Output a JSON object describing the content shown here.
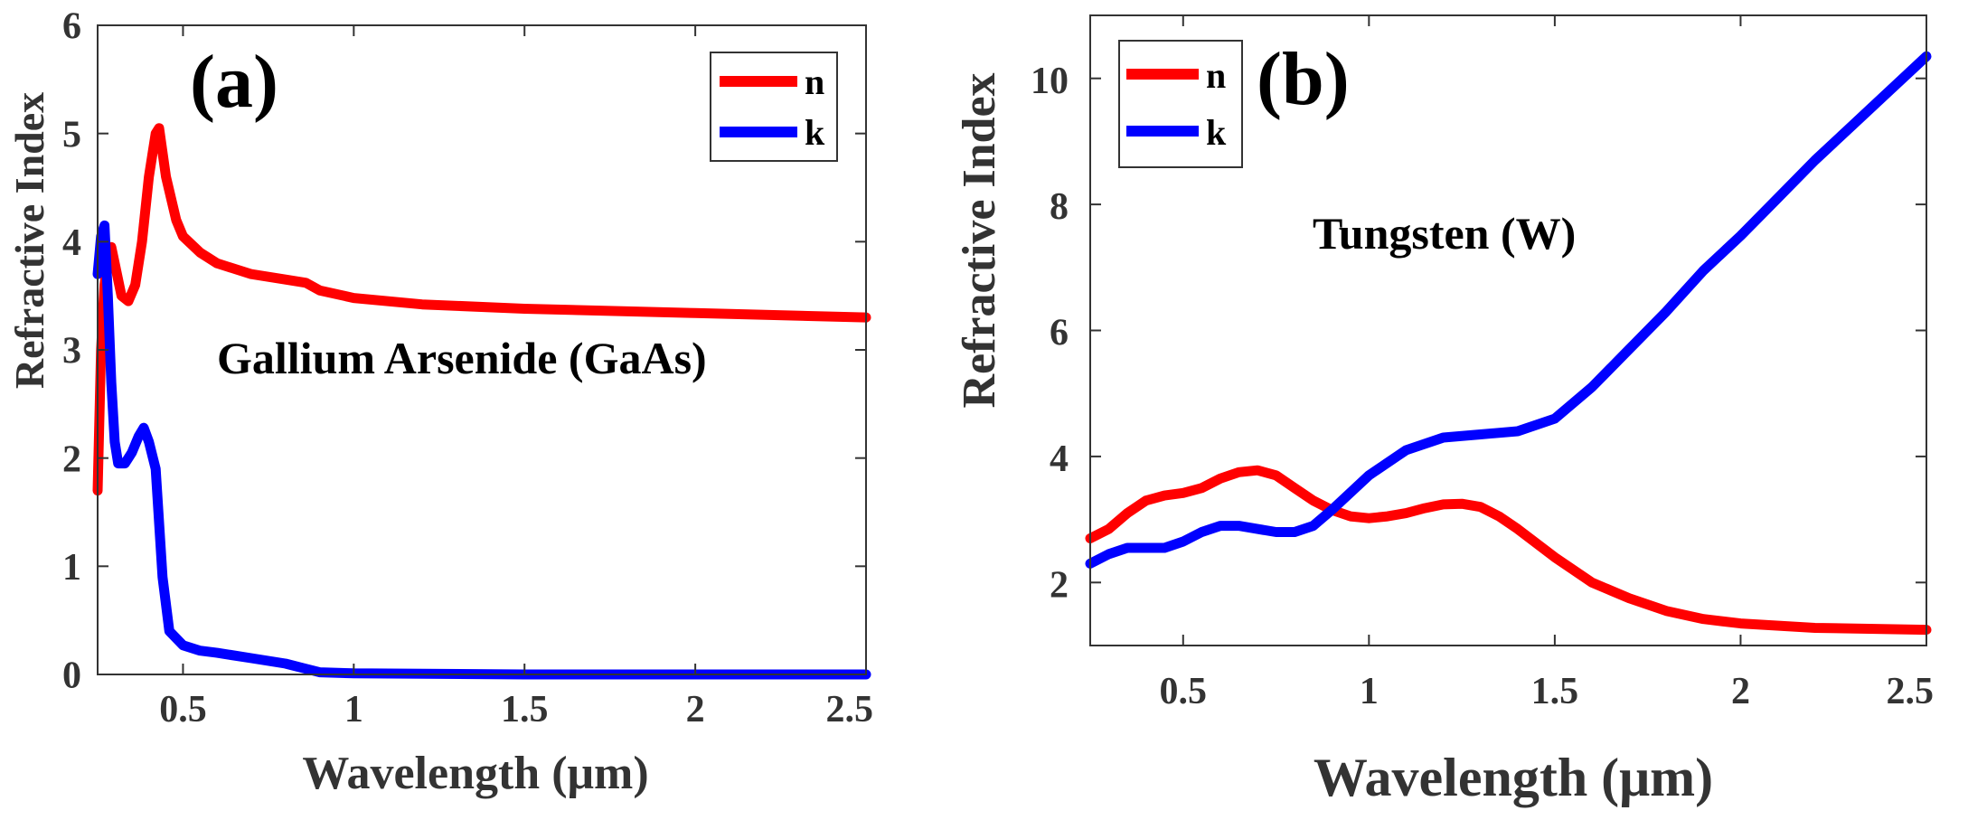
{
  "chart_data": [
    {
      "type": "line",
      "panel_label": "(a)",
      "annotation": "Gallium Arsenide (GaAs)",
      "xlabel": "Wavelength (μm)",
      "ylabel": "Refractive Index",
      "xlim": [
        0.25,
        2.5
      ],
      "ylim": [
        0,
        6
      ],
      "xticks": [
        0.5,
        1,
        1.5,
        2,
        2.5
      ],
      "xtick_labels": [
        "0.5",
        "1",
        "1.5",
        "2",
        "2.5"
      ],
      "yticks": [
        0,
        1,
        2,
        3,
        4,
        5,
        6
      ],
      "ytick_labels": [
        "0",
        "1",
        "2",
        "3",
        "4",
        "5",
        "6"
      ],
      "grid": false,
      "legend": "top-right",
      "series": [
        {
          "name": "n",
          "color": "#ff0000",
          "x": [
            0.25,
            0.26,
            0.27,
            0.28,
            0.29,
            0.3,
            0.32,
            0.34,
            0.36,
            0.38,
            0.4,
            0.42,
            0.43,
            0.45,
            0.48,
            0.5,
            0.55,
            0.6,
            0.7,
            0.8,
            0.86,
            0.9,
            1.0,
            1.2,
            1.5,
            2.0,
            2.5
          ],
          "y": [
            1.7,
            3.0,
            3.6,
            3.85,
            3.95,
            3.8,
            3.5,
            3.45,
            3.6,
            4.0,
            4.6,
            5.0,
            5.05,
            4.6,
            4.2,
            4.05,
            3.9,
            3.8,
            3.7,
            3.65,
            3.62,
            3.55,
            3.48,
            3.42,
            3.38,
            3.34,
            3.3
          ]
        },
        {
          "name": "k",
          "color": "#0000ff",
          "x": [
            0.25,
            0.26,
            0.27,
            0.28,
            0.29,
            0.3,
            0.31,
            0.33,
            0.35,
            0.37,
            0.385,
            0.4,
            0.42,
            0.44,
            0.46,
            0.5,
            0.55,
            0.6,
            0.7,
            0.8,
            0.85,
            0.9,
            1.0,
            1.5,
            2.0,
            2.5
          ],
          "y": [
            3.7,
            4.05,
            4.15,
            3.5,
            2.7,
            2.15,
            1.95,
            1.95,
            2.05,
            2.2,
            2.28,
            2.15,
            1.9,
            0.9,
            0.4,
            0.27,
            0.22,
            0.2,
            0.15,
            0.1,
            0.06,
            0.02,
            0.01,
            0.0,
            0.0,
            0.0
          ]
        }
      ]
    },
    {
      "type": "line",
      "panel_label": "(b)",
      "annotation": "Tungsten (W)",
      "xlabel": "Wavelength (μm)",
      "ylabel": "Refractive Index",
      "xlim": [
        0.25,
        2.5
      ],
      "ylim": [
        1,
        11
      ],
      "xticks": [
        0.5,
        1,
        1.5,
        2,
        2.5
      ],
      "xtick_labels": [
        "0.5",
        "1",
        "1.5",
        "2",
        "2.5"
      ],
      "yticks": [
        2,
        4,
        6,
        8,
        10
      ],
      "ytick_labels": [
        "2",
        "4",
        "6",
        "8",
        "10"
      ],
      "grid": false,
      "legend": "top-left",
      "series": [
        {
          "name": "n",
          "color": "#ff0000",
          "x": [
            0.25,
            0.3,
            0.35,
            0.4,
            0.45,
            0.5,
            0.55,
            0.6,
            0.65,
            0.7,
            0.75,
            0.8,
            0.85,
            0.9,
            0.95,
            1.0,
            1.05,
            1.1,
            1.15,
            1.2,
            1.25,
            1.3,
            1.35,
            1.4,
            1.5,
            1.6,
            1.7,
            1.8,
            1.9,
            2.0,
            2.2,
            2.5
          ],
          "y": [
            2.7,
            2.85,
            3.1,
            3.3,
            3.38,
            3.42,
            3.5,
            3.65,
            3.75,
            3.78,
            3.7,
            3.5,
            3.3,
            3.15,
            3.05,
            3.02,
            3.05,
            3.1,
            3.18,
            3.24,
            3.25,
            3.2,
            3.05,
            2.85,
            2.4,
            2.0,
            1.75,
            1.55,
            1.42,
            1.35,
            1.28,
            1.25
          ]
        },
        {
          "name": "k",
          "color": "#0000ff",
          "x": [
            0.25,
            0.3,
            0.35,
            0.4,
            0.45,
            0.5,
            0.55,
            0.6,
            0.65,
            0.7,
            0.75,
            0.8,
            0.85,
            0.9,
            1.0,
            1.1,
            1.2,
            1.3,
            1.4,
            1.5,
            1.6,
            1.7,
            1.8,
            1.9,
            2.0,
            2.1,
            2.2,
            2.3,
            2.4,
            2.5
          ],
          "y": [
            2.3,
            2.45,
            2.55,
            2.55,
            2.55,
            2.65,
            2.8,
            2.9,
            2.9,
            2.85,
            2.8,
            2.8,
            2.9,
            3.15,
            3.7,
            4.1,
            4.3,
            4.35,
            4.4,
            4.6,
            5.1,
            5.7,
            6.3,
            6.95,
            7.5,
            8.1,
            8.7,
            9.25,
            9.8,
            10.35
          ]
        }
      ]
    }
  ]
}
